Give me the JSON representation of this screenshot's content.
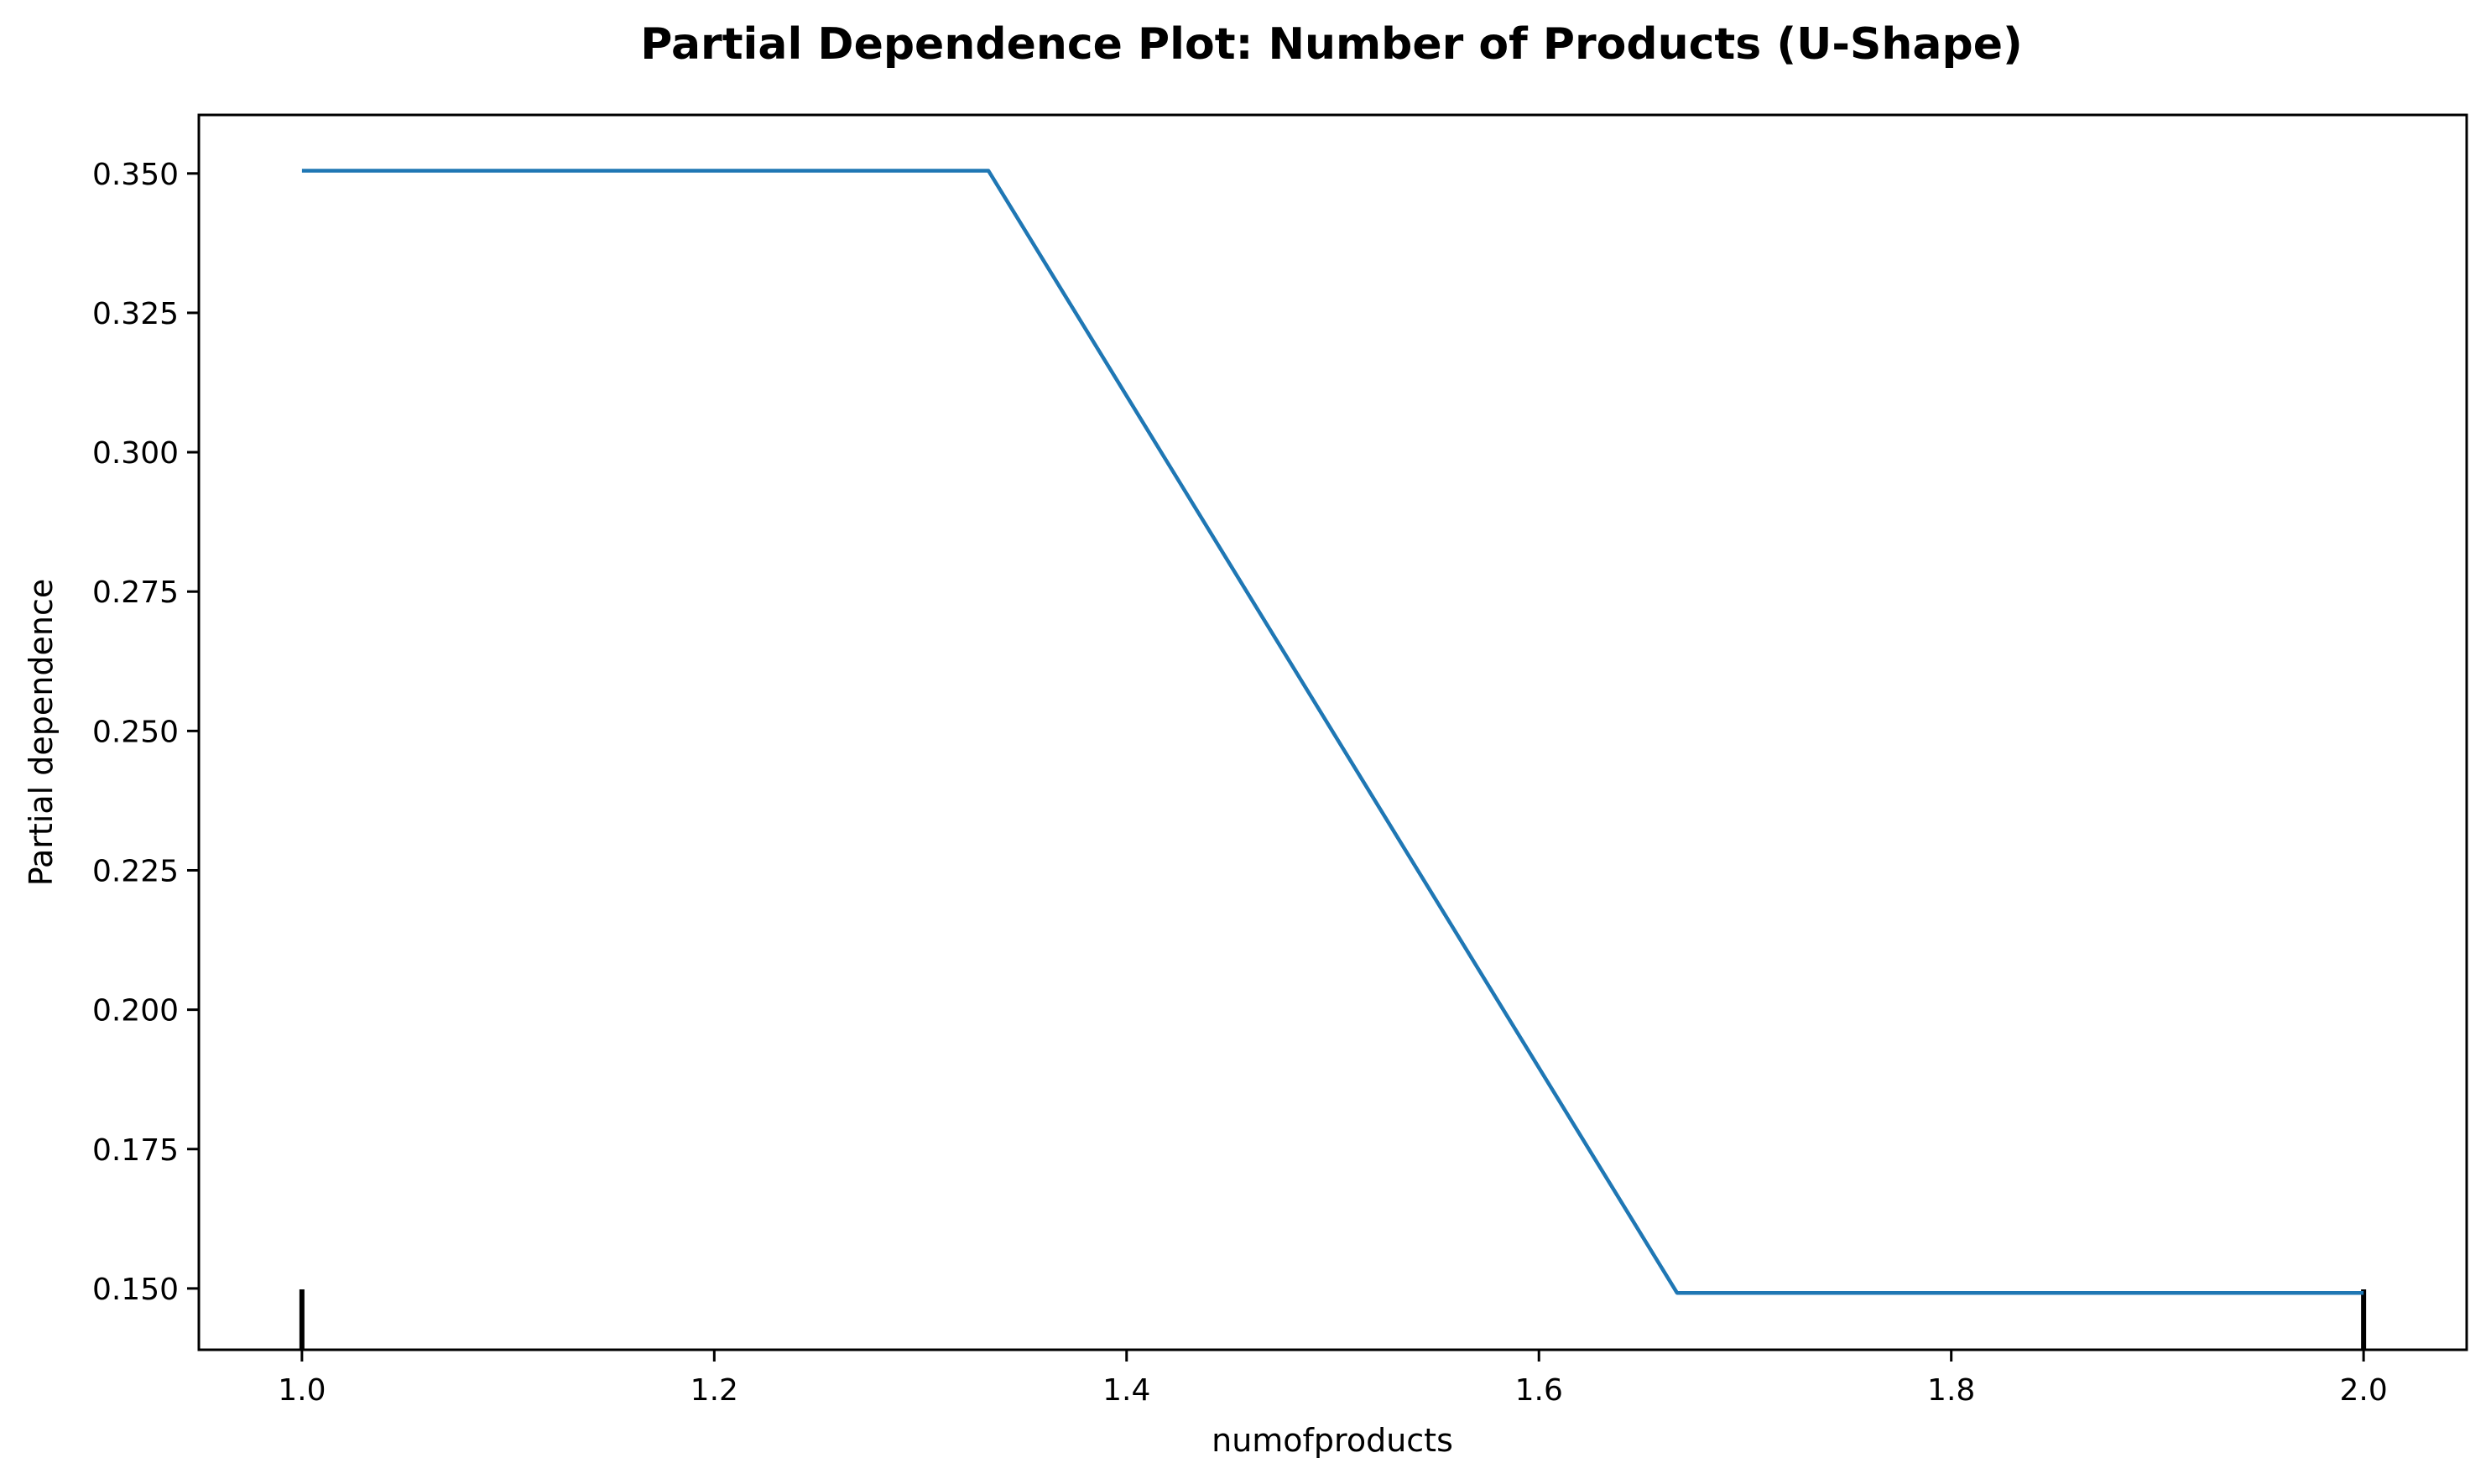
{
  "chart_data": {
    "type": "line",
    "title": "Partial Dependence Plot: Number of Products (U-Shape)",
    "xlabel": "numofproducts",
    "ylabel": "Partial dependence",
    "xlim": [
      0.95,
      2.05
    ],
    "ylim": [
      0.139,
      0.3605
    ],
    "x_ticks": [
      1.0,
      1.2,
      1.4,
      1.6,
      1.8,
      2.0
    ],
    "x_tick_labels": [
      "1.0",
      "1.2",
      "1.4",
      "1.6",
      "1.8",
      "2.0"
    ],
    "y_ticks": [
      0.15,
      0.175,
      0.2,
      0.225,
      0.25,
      0.275,
      0.3,
      0.325,
      0.35
    ],
    "y_tick_labels": [
      "0.150",
      "0.175",
      "0.200",
      "0.225",
      "0.250",
      "0.275",
      "0.300",
      "0.325",
      "0.350"
    ],
    "grid": false,
    "series": [
      {
        "color": "#1f77b4",
        "x": [
          1.0,
          1.333,
          1.667,
          2.0
        ],
        "y": [
          0.3505,
          0.3505,
          0.1492,
          0.1492
        ]
      }
    ],
    "rug_marks": [
      1.0,
      2.0
    ],
    "rug_color": "#000000"
  }
}
